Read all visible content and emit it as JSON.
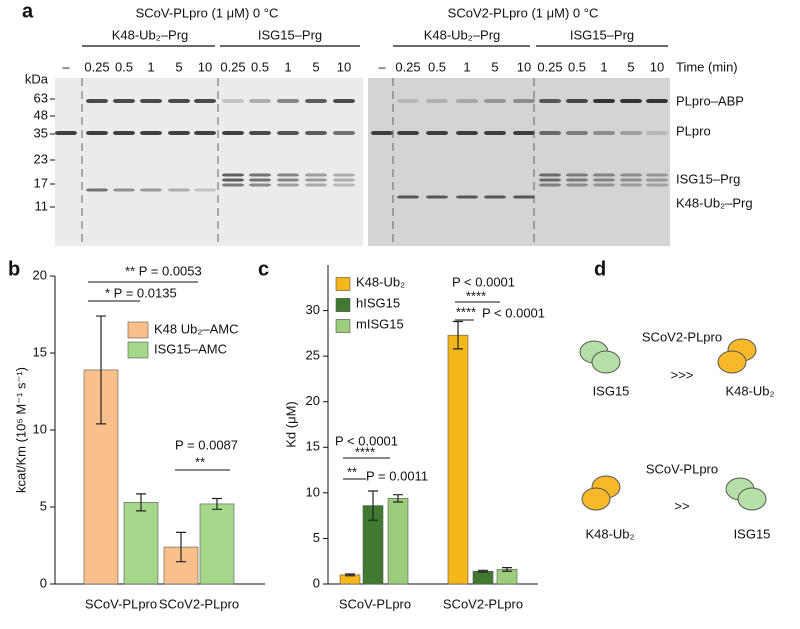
{
  "panel_letters": [
    "a",
    "b",
    "c",
    "d"
  ],
  "gel": {
    "left_title": "SCoV-PLpro (1 μM) 0 °C",
    "right_title": "SCoV2-PLpro (1 μM) 0 °C",
    "groups": [
      "K48-Ub₂–Prg",
      "ISG15–Prg"
    ],
    "lanes": [
      "–",
      "0.25",
      "0.5",
      "1",
      "5",
      "10",
      "0.25",
      "0.5",
      "1",
      "5",
      "10"
    ],
    "time_label": "Time (min)",
    "kda_label": "kDa",
    "markers": [
      "63",
      "48",
      "35",
      "23",
      "17",
      "11"
    ],
    "band_labels": [
      "PLpro–ABP",
      "PLpro",
      "ISG15–Prg",
      "K48-Ub₂–Prg"
    ]
  },
  "chart_data": [
    {
      "type": "bar",
      "ylabel": "kcat/Km (10⁵ M⁻¹ s⁻¹)",
      "categories": [
        "SCoV-PLpro",
        "SCoV2-PLpro"
      ],
      "series": [
        {
          "name": "K48 Ub₂–AMC",
          "color": "#f9c08b",
          "values": [
            13.9,
            2.4
          ],
          "errors": [
            3.5,
            0.95
          ]
        },
        {
          "name": "ISG15–AMC",
          "color": "#a6d88c",
          "values": [
            5.3,
            5.2
          ],
          "errors": [
            0.55,
            0.35
          ]
        }
      ],
      "ylim": [
        0,
        20
      ],
      "yticks": [
        0,
        5,
        10,
        15,
        20
      ],
      "annotations": [
        "** P = 0.0053",
        "* P = 0.0135",
        "P = 0.0087",
        "**"
      ]
    },
    {
      "type": "bar",
      "ylabel": "Kd (μM)",
      "categories": [
        "SCoV-PLpro",
        "SCoV2-PLpro"
      ],
      "series": [
        {
          "name": "K48-Ub₂",
          "color": "#f5b81b",
          "values": [
            1.0,
            27.3
          ],
          "errors": [
            0.1,
            1.5
          ]
        },
        {
          "name": "hISG15",
          "color": "#3f7a30",
          "values": [
            8.6,
            1.4
          ],
          "errors": [
            1.6,
            0.1
          ]
        },
        {
          "name": "mISG15",
          "color": "#9ccd7c",
          "values": [
            9.4,
            1.6
          ],
          "errors": [
            0.4,
            0.2
          ]
        }
      ],
      "ylim": [
        0,
        35
      ],
      "yticks": [
        0,
        5,
        10,
        15,
        20,
        25,
        30
      ],
      "annotations": [
        "P < 0.0001",
        "****",
        "**",
        "P = 0.0011",
        "P < 0.0001",
        "****",
        "****",
        "P < 0.0001"
      ]
    }
  ],
  "diagram": {
    "top_enzyme": "SCoV2-PLpro",
    "top_left": "ISG15",
    "top_relation": ">>>",
    "top_right": "K48-Ub₂",
    "bottom_enzyme": "SCoV-PLpro",
    "bottom_left": "K48-Ub₂",
    "bottom_relation": ">>",
    "bottom_right": "ISG15"
  }
}
